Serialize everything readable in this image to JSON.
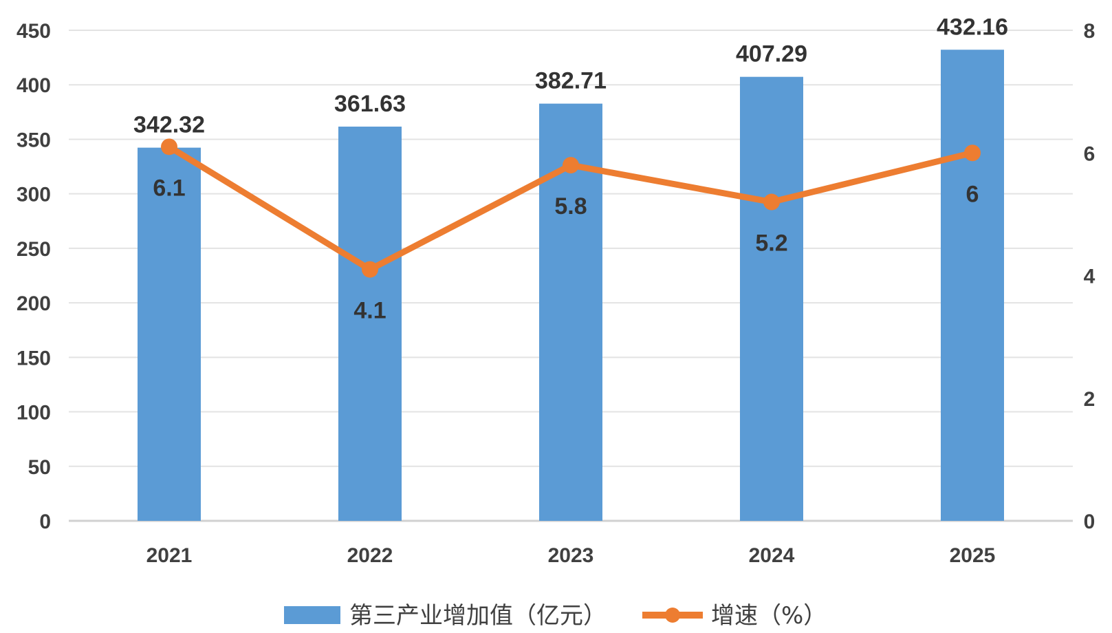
{
  "chart_data": {
    "type": "bar",
    "categories": [
      "2021",
      "2022",
      "2023",
      "2024",
      "2025"
    ],
    "series": [
      {
        "name": "第三产业增加值（亿元）",
        "type": "bar",
        "axis": "left",
        "values": [
          342.32,
          361.63,
          382.71,
          407.29,
          432.16
        ],
        "value_labels": [
          "342.32",
          "361.63",
          "382.71",
          "407.29",
          "432.16"
        ],
        "color": "#5B9BD5"
      },
      {
        "name": "增速（%）",
        "type": "line",
        "axis": "right",
        "values": [
          6.1,
          4.1,
          5.8,
          5.2,
          6
        ],
        "value_labels": [
          "6.1",
          "4.1",
          "5.8",
          "5.2",
          "6"
        ],
        "color": "#ED7D31"
      }
    ],
    "y_left": {
      "min": 0,
      "max": 450,
      "ticks": [
        "0",
        "50",
        "100",
        "150",
        "200",
        "250",
        "300",
        "350",
        "400",
        "450"
      ]
    },
    "y_right": {
      "min": 0,
      "max": 8,
      "ticks": [
        "0",
        "2",
        "4",
        "6",
        "8"
      ]
    },
    "grid": true,
    "legend_position": "bottom",
    "title": "",
    "xlabel": "",
    "ylabel": ""
  }
}
